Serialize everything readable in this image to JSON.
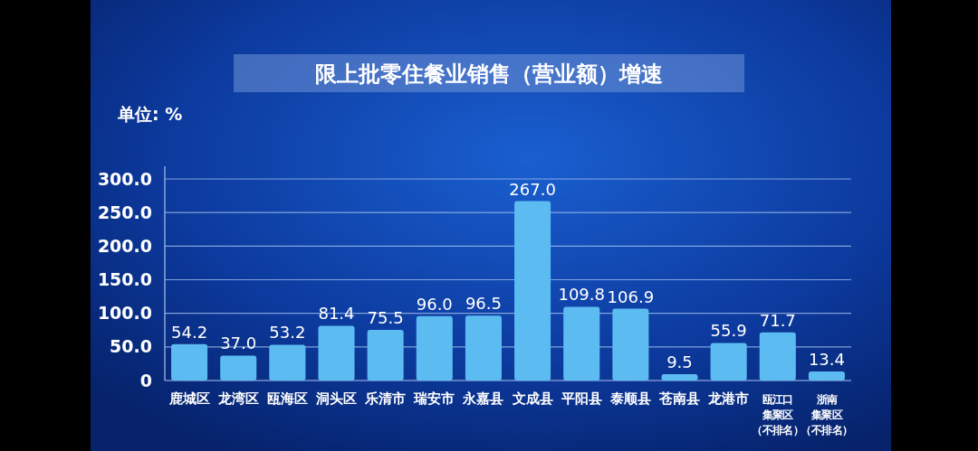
{
  "chart_data": {
    "type": "bar",
    "title": "限上批零住餐业销售（营业额）增速",
    "ylabel": "单位: %",
    "categories": [
      "鹿城区",
      "龙湾区",
      "瓯海区",
      "洞头区",
      "乐清市",
      "瑞安市",
      "永嘉县",
      "文成县",
      "平阳县",
      "泰顺县",
      "苍南县",
      "龙港市",
      "瓯江口集聚区（不排名）",
      "浙南集聚区（不排名）"
    ],
    "values": [
      54.2,
      37.0,
      53.2,
      81.4,
      75.5,
      96.0,
      96.5,
      267.0,
      109.8,
      106.9,
      9.5,
      55.9,
      71.7,
      13.4
    ],
    "value_labels": [
      "54.2",
      "37.0",
      "53.2",
      "81.4",
      "75.5",
      "96.0",
      "96.5",
      "267.0",
      "109.8",
      "106.9",
      "9.5",
      "55.9",
      "71.7",
      "13.4"
    ],
    "color": "#5cbcf2",
    "ylim": [
      0,
      300
    ],
    "yticks": [
      0,
      {
        "value": 50,
        "label": "50.0"
      },
      {
        "value": 100,
        "label": "100.0"
      },
      {
        "value": 150,
        "label": "150.0"
      },
      {
        "value": 200,
        "label": "200.0"
      },
      {
        "value": 250,
        "label": "250.0"
      },
      {
        "value": 300,
        "label": "300.0"
      }
    ],
    "grid": "y"
  }
}
